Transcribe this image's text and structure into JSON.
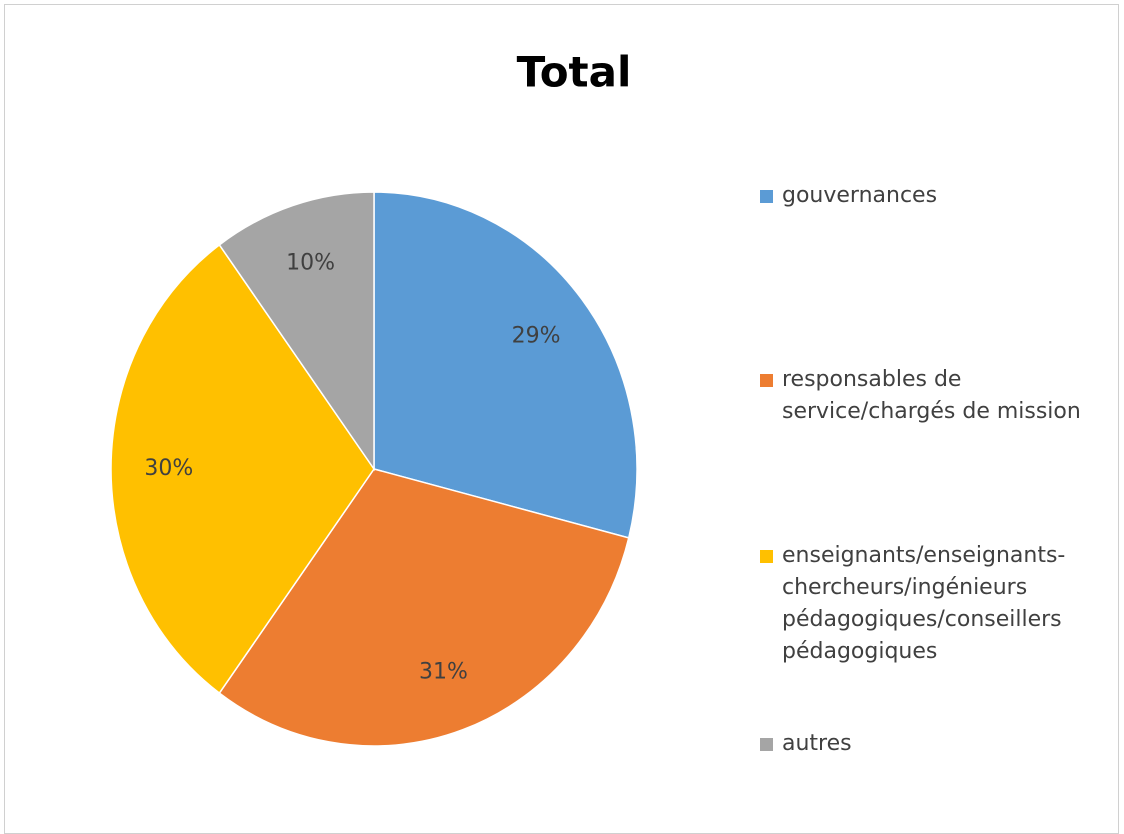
{
  "chart_data": {
    "type": "pie",
    "title": "Total",
    "categories": [
      "gouvernances",
      "responsables de service/chargés de mission",
      "enseignants/enseignants-chercheurs/ingénieurs pédagogiques/conseillers pédagogiques",
      "autres"
    ],
    "values": [
      29,
      31,
      30,
      10
    ],
    "value_labels": [
      "29%",
      "31%",
      "30%",
      "10%"
    ],
    "colors": [
      "#5b9bd5",
      "#ed7d31",
      "#ffc000",
      "#a5a5a5"
    ],
    "legend": "right"
  }
}
